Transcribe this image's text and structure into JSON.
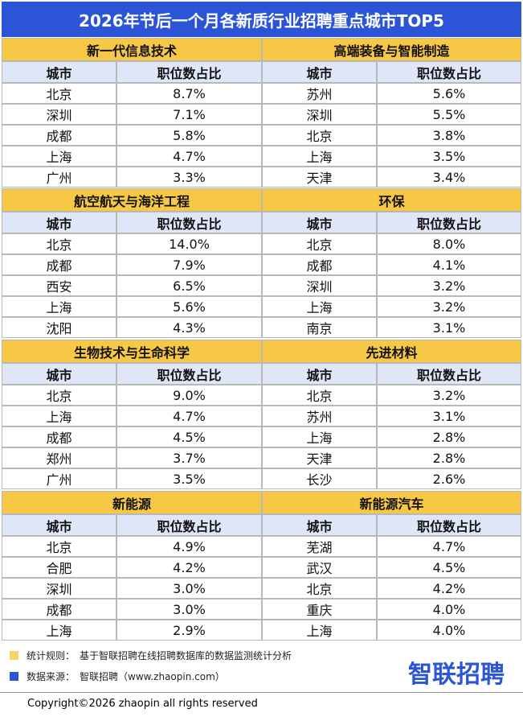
{
  "title": "2026年节后一个月各新质行业招聘重点城市TOP5",
  "sections": [
    {
      "name": "新一代信息技术",
      "columns": [
        "城市",
        "职位数占比"
      ],
      "rows": [
        [
          "北京",
          "8.7%"
        ],
        [
          "深圳",
          "7.1%"
        ],
        [
          "成都",
          "5.8%"
        ],
        [
          "上海",
          "4.7%"
        ],
        [
          "广州",
          "3.3%"
        ]
      ]
    },
    {
      "name": "高端装备与智能制造",
      "columns": [
        "城市",
        "职位数占比"
      ],
      "rows": [
        [
          "苏州",
          "5.6%"
        ],
        [
          "深圳",
          "5.5%"
        ],
        [
          "北京",
          "3.8%"
        ],
        [
          "上海",
          "3.5%"
        ],
        [
          "天津",
          "3.4%"
        ]
      ]
    },
    {
      "name": "航空航天与海洋工程",
      "columns": [
        "城市",
        "职位数占比"
      ],
      "rows": [
        [
          "北京",
          "14.0%"
        ],
        [
          "成都",
          "7.9%"
        ],
        [
          "西安",
          "6.5%"
        ],
        [
          "上海",
          "5.6%"
        ],
        [
          "沈阳",
          "4.3%"
        ]
      ]
    },
    {
      "name": "环保",
      "columns": [
        "城市",
        "职位数占比"
      ],
      "rows": [
        [
          "北京",
          "8.0%"
        ],
        [
          "成都",
          "4.1%"
        ],
        [
          "深圳",
          "3.2%"
        ],
        [
          "上海",
          "3.2%"
        ],
        [
          "南京",
          "3.1%"
        ]
      ]
    },
    {
      "name": "生物技术与生命科学",
      "columns": [
        "城市",
        "职位数占比"
      ],
      "rows": [
        [
          "北京",
          "9.0%"
        ],
        [
          "上海",
          "4.7%"
        ],
        [
          "成都",
          "4.5%"
        ],
        [
          "郑州",
          "3.7%"
        ],
        [
          "广州",
          "3.5%"
        ]
      ]
    },
    {
      "name": "先进材料",
      "columns": [
        "城市",
        "职位数占比"
      ],
      "rows": [
        [
          "北京",
          "3.2%"
        ],
        [
          "苏州",
          "3.1%"
        ],
        [
          "上海",
          "2.8%"
        ],
        [
          "天津",
          "2.8%"
        ],
        [
          "长沙",
          "2.6%"
        ]
      ]
    },
    {
      "name": "新能源",
      "columns": [
        "城市",
        "职位数占比"
      ],
      "rows": [
        [
          "北京",
          "4.9%"
        ],
        [
          "合肥",
          "4.2%"
        ],
        [
          "深圳",
          "3.0%"
        ],
        [
          "成都",
          "3.0%"
        ],
        [
          "上海",
          "2.9%"
        ]
      ]
    },
    {
      "name": "新能源汽车",
      "columns": [
        "城市",
        "职位数占比"
      ],
      "rows": [
        [
          "芜湖",
          "4.7%"
        ],
        [
          "武汉",
          "4.5%"
        ],
        [
          "北京",
          "4.2%"
        ],
        [
          "重庆",
          "4.0%"
        ],
        [
          "上海",
          "4.0%"
        ]
      ]
    }
  ],
  "notes": [
    {
      "label": "统计规则：",
      "text": "基于智联招聘在线招聘数据库的数据监测统计分析"
    },
    {
      "label": "数据来源：",
      "text": "智联招聘（www.zhaopin.com）"
    }
  ],
  "logo": "智联招聘",
  "copyright": "Copyright©2026 zhaopin all rights reserved"
}
